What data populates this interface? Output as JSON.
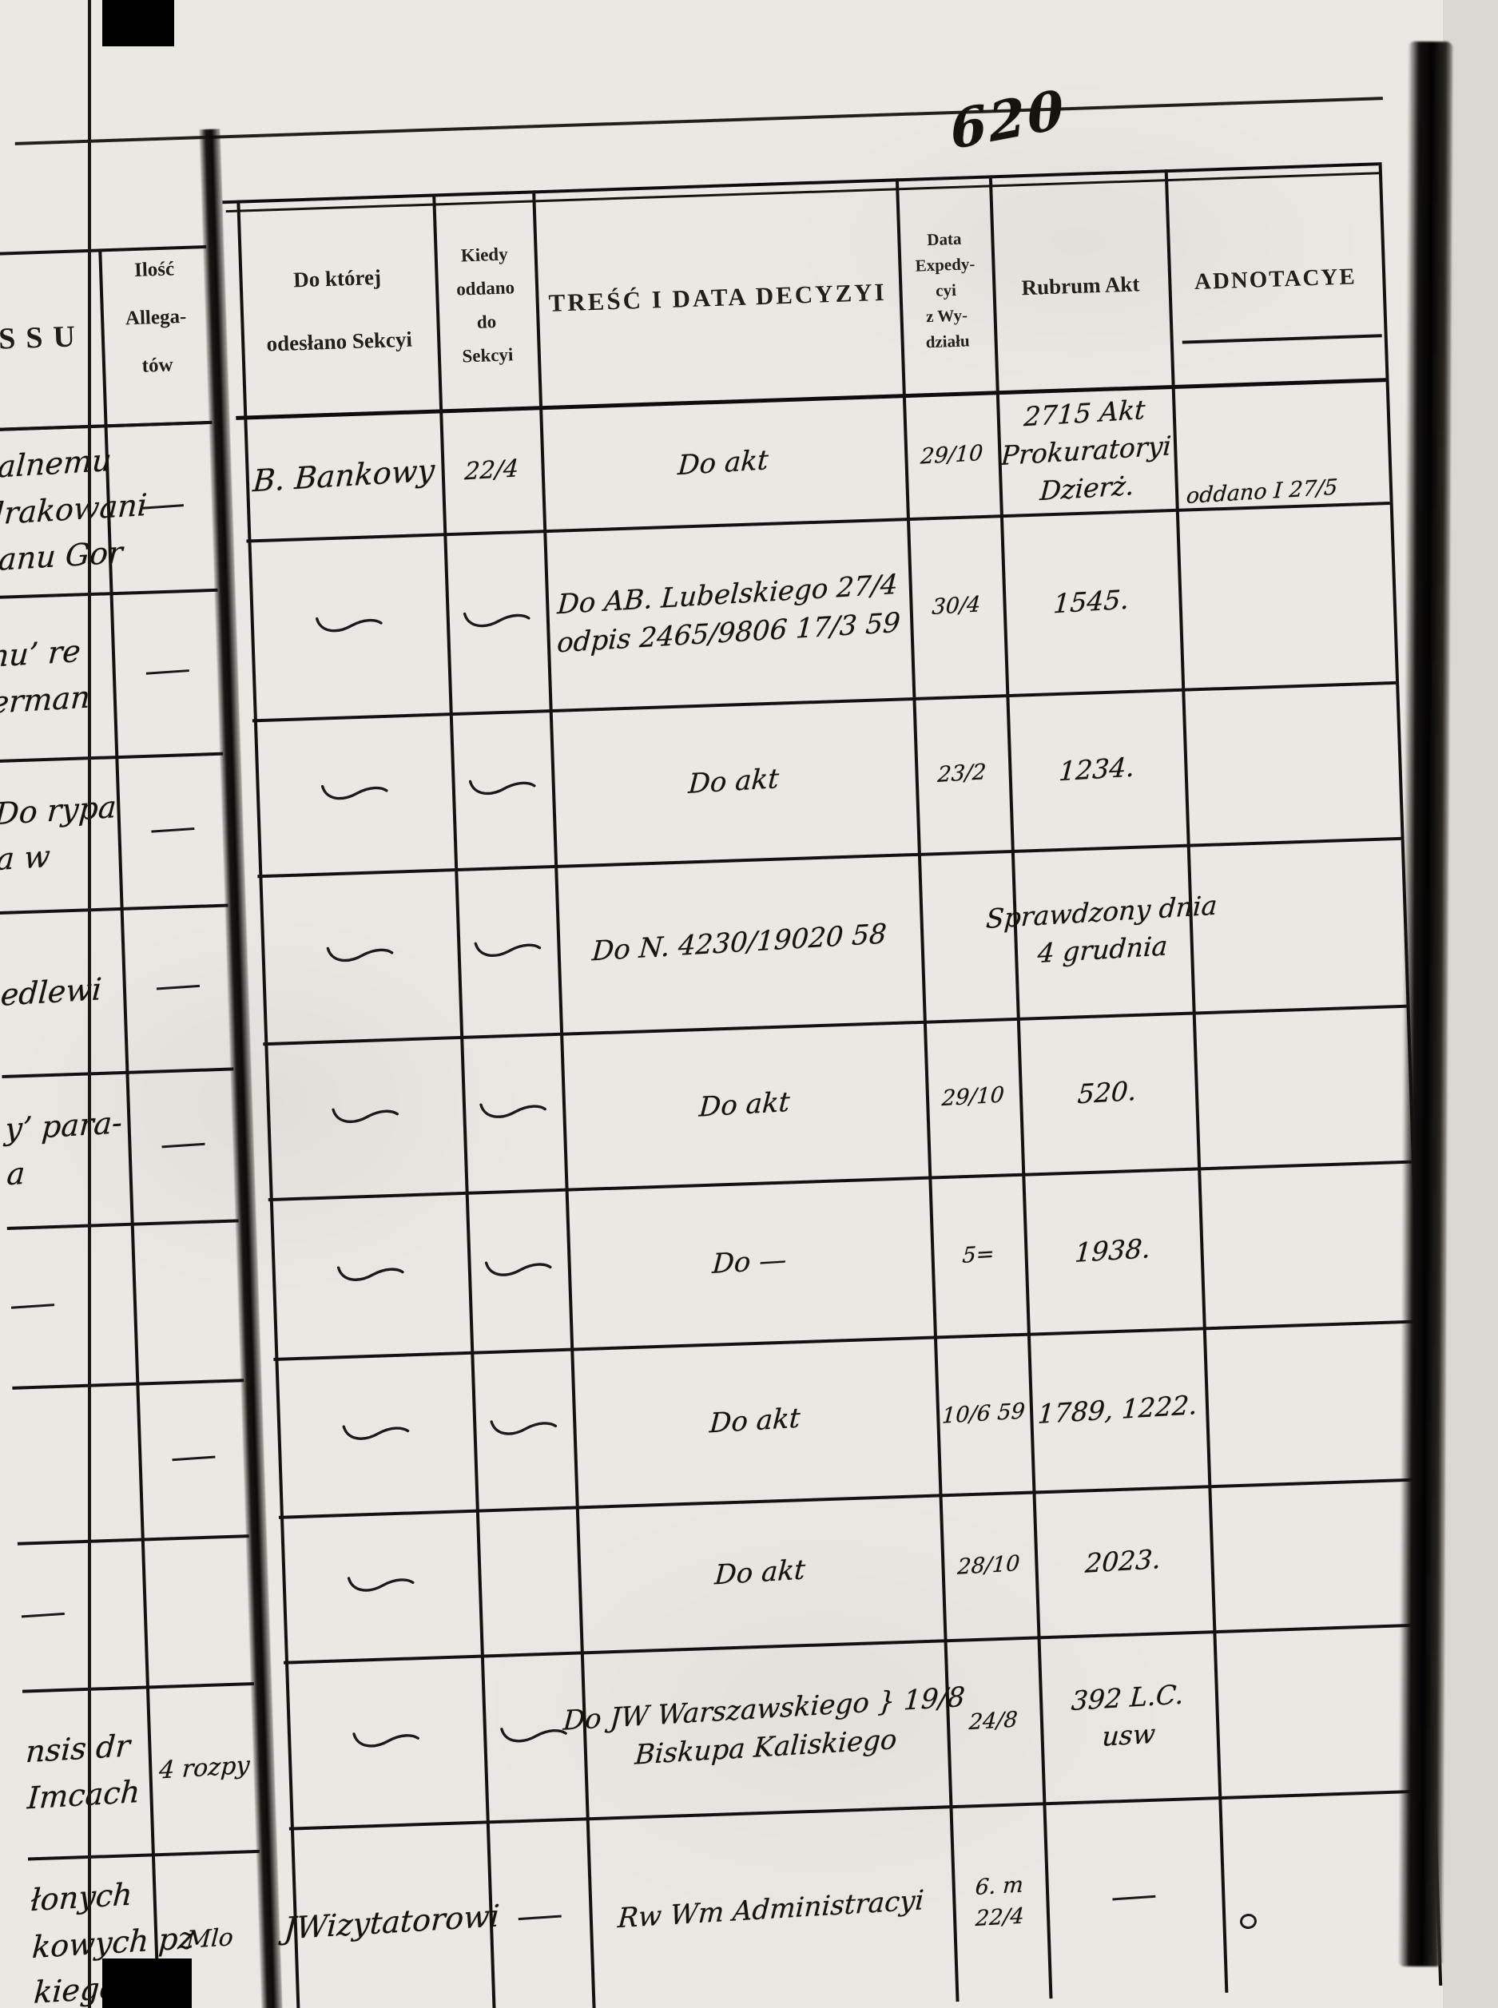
{
  "page": {
    "number": "620"
  },
  "colors": {
    "paper": "#eae8e2",
    "ink": "#16130d",
    "print": "#201d18",
    "gutter": "#0c0b09"
  },
  "marks": {
    "flourish": "~",
    "dash": "—",
    "circle_mark": "o"
  },
  "left_page": {
    "header_processu": "ESSU",
    "header_ilosc": [
      "Ilość",
      "Allega-",
      "tów"
    ],
    "rows": [
      {
        "fragment": [
          "ralnemu",
          "drakowani",
          "tanu Gor"
        ],
        "allegata": "—"
      },
      {
        "fragment": [
          "nu’ re",
          "erman"
        ],
        "allegata": "—"
      },
      {
        "fragment": [
          "Do rypa",
          "a w"
        ],
        "allegata": "—"
      },
      {
        "fragment": [
          "edlewi"
        ],
        "allegata": "—"
      },
      {
        "fragment": [
          "y’ para-",
          "a"
        ],
        "allegata": "—"
      },
      {
        "fragment": [
          "—"
        ],
        "allegata": ""
      },
      {
        "fragment": [],
        "allegata": "—"
      },
      {
        "fragment": [
          "—"
        ],
        "allegata": ""
      },
      {
        "fragment": [
          "nsis dr",
          "Imcach"
        ],
        "allegata": "4 rozpy"
      },
      {
        "fragment": [
          "łonych",
          "kowych pz",
          "kiego"
        ],
        "allegata": "Mlo"
      }
    ]
  },
  "table": {
    "headers": {
      "sekcya": [
        "Do której",
        "odesłano Sekcyi"
      ],
      "kiedy": [
        "Kiedy",
        "oddano",
        "do",
        "Sekcyi"
      ],
      "tresc": "TREŚĆ I DATA DECYZYI",
      "data_exp": [
        "Data",
        "Expedy-",
        "cyi",
        "z Wy-",
        "działu"
      ],
      "rubrum": "Rubrum Akt",
      "adnotacye": "ADNOTACYE"
    },
    "rows": [
      {
        "sekcya": "B. Bankowy",
        "kiedy": "22/4",
        "tresc": [
          "Do akt"
        ],
        "data_exp": [
          "29/10"
        ],
        "rubrum": [
          "2715 Akt",
          "Prokuratoryi",
          "Dzierż."
        ],
        "adnotacye": [
          "oddano I 27/5"
        ]
      },
      {
        "sekcya": "~",
        "kiedy": "~",
        "tresc": [
          "Do AB. Lubelskiego 27/4",
          "odpis 2465/9806 17/3 59"
        ],
        "data_exp": [
          "30/4"
        ],
        "rubrum": [
          "1545."
        ],
        "adnotacye": []
      },
      {
        "sekcya": "~",
        "kiedy": "~",
        "tresc": [
          "Do akt"
        ],
        "data_exp": [
          "23/2"
        ],
        "rubrum": [
          "1234."
        ],
        "adnotacye": []
      },
      {
        "sekcya": "~",
        "kiedy": "~",
        "tresc": [
          "Do N. 4230/19020 58"
        ],
        "data_exp": [],
        "rubrum": [
          "Sprawdzony dnia",
          "4 grudnia"
        ],
        "adnotacye": []
      },
      {
        "sekcya": "~",
        "kiedy": "~",
        "tresc": [
          "Do akt"
        ],
        "data_exp": [
          "29/10"
        ],
        "rubrum": [
          "520."
        ],
        "adnotacye": []
      },
      {
        "sekcya": "~",
        "kiedy": "~",
        "tresc": [
          "Do —"
        ],
        "data_exp": [
          "5="
        ],
        "rubrum": [
          "1938."
        ],
        "adnotacye": []
      },
      {
        "sekcya": "~",
        "kiedy": "~",
        "tresc": [
          "Do akt"
        ],
        "data_exp": [
          "10/6 59"
        ],
        "rubrum": [
          "1789, 1222."
        ],
        "adnotacye": []
      },
      {
        "sekcya": "~",
        "kiedy": "",
        "tresc": [
          "Do akt"
        ],
        "data_exp": [
          "28/10"
        ],
        "rubrum": [
          "2023."
        ],
        "adnotacye": []
      },
      {
        "sekcya": "~",
        "kiedy": "~",
        "tresc": [
          "Do JW Warszawskiego } 19/8",
          "Biskupa Kaliskiego"
        ],
        "data_exp": [
          "24/8"
        ],
        "rubrum": [
          "392 L.C.",
          "usw"
        ],
        "adnotacye": []
      },
      {
        "sekcya": "JWizytatorowi",
        "kiedy": "—",
        "tresc": [
          "Rw Wm Administracyi"
        ],
        "data_exp": [
          "6. m",
          "22/4"
        ],
        "rubrum": [
          "—"
        ],
        "adnotacye": []
      }
    ]
  }
}
